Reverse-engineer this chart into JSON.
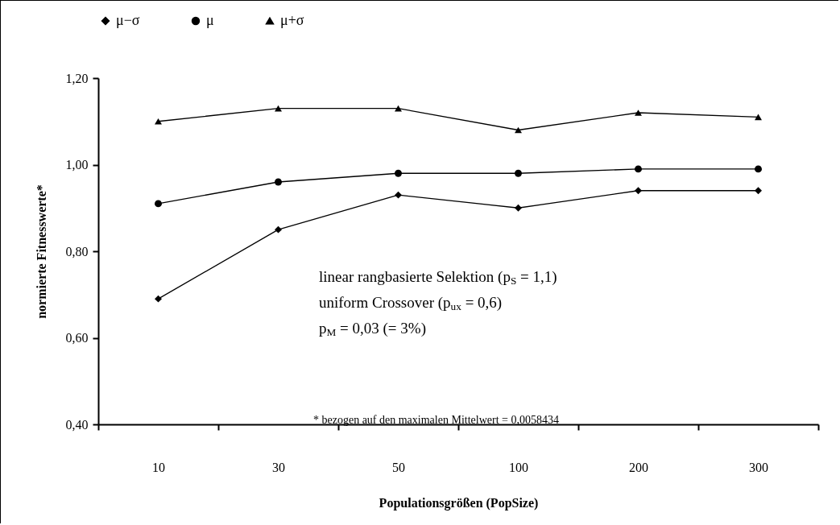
{
  "chart_data": {
    "type": "line",
    "xlabel": "Populationsgrößen (PopSize)",
    "ylabel": "normierte Fitnesswerte*",
    "categories": [
      "10",
      "30",
      "50",
      "100",
      "200",
      "300"
    ],
    "series": [
      {
        "name": "μ−σ",
        "color": "#000000",
        "marker": "diamond",
        "values": [
          0.69,
          0.85,
          0.93,
          0.9,
          0.94,
          0.94
        ]
      },
      {
        "name": "μ",
        "color": "#000000",
        "marker": "circle",
        "values": [
          0.91,
          0.96,
          0.98,
          0.98,
          0.99,
          0.99
        ]
      },
      {
        "name": "μ+σ",
        "color": "#000000",
        "marker": "triangle",
        "values": [
          1.1,
          1.13,
          1.13,
          1.08,
          1.12,
          1.11
        ]
      }
    ],
    "ylim": [
      0.4,
      1.2
    ],
    "yticks": [
      {
        "value": 0.4,
        "label": "0,40"
      },
      {
        "value": 0.6,
        "label": "0,60"
      },
      {
        "value": 0.8,
        "label": "0,80"
      },
      {
        "value": 1.0,
        "label": "1,00"
      },
      {
        "value": 1.2,
        "label": "1,20"
      }
    ],
    "grid": false,
    "legend": "top",
    "annotations": [
      "linear rangbasierte Selektion (p$_{S}$ = 1,1)",
      "uniform Crossover (p$_{ux}$ = 0,6)",
      "p$_{M}$ = 0,03 (= 3%)",
      "* bezogen auf den maximalen Mittelwert = 0,0058434"
    ]
  }
}
